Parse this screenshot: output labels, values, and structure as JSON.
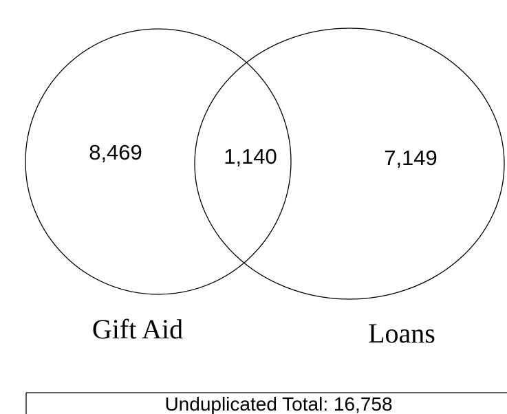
{
  "regions": {
    "left_only": "8,469",
    "overlap": "1,140",
    "right_only": "7,149"
  },
  "sets": [
    "Gift Aid",
    "Loans"
  ],
  "footer": "Unduplicated Total: 16,758"
}
